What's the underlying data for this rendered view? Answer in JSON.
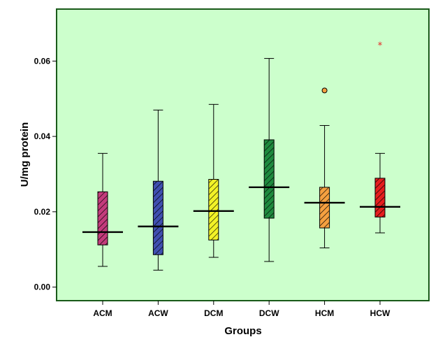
{
  "chart_data": {
    "type": "box",
    "xlabel": "Groups",
    "ylabel": "U/mg protein",
    "ylim": [
      -0.0036,
      0.0738
    ],
    "yticks": [
      0.0,
      0.02,
      0.04,
      0.06
    ],
    "ytick_labels": [
      "0.00",
      "0.02",
      "0.04",
      "0.06"
    ],
    "grid": false,
    "plot_background": "#ccffcc",
    "frame_color": "#1a5a1a",
    "categories": [
      "ACM",
      "ACW",
      "DCM",
      "DCW",
      "HCM",
      "HCW"
    ],
    "boxes": [
      {
        "category": "ACM",
        "min": 0.0055,
        "q1": 0.0112,
        "median": 0.0146,
        "q3": 0.0253,
        "max": 0.0355,
        "color": "#c43c7c",
        "outliers": []
      },
      {
        "category": "ACW",
        "min": 0.0045,
        "q1": 0.0086,
        "median": 0.0161,
        "q3": 0.0281,
        "max": 0.047,
        "color": "#3f4fb0",
        "outliers": []
      },
      {
        "category": "DCM",
        "min": 0.0079,
        "q1": 0.0125,
        "median": 0.0202,
        "q3": 0.0286,
        "max": 0.0485,
        "color": "#f2f227",
        "outliers": []
      },
      {
        "category": "DCW",
        "min": 0.0068,
        "q1": 0.0183,
        "median": 0.0265,
        "q3": 0.0391,
        "max": 0.0607,
        "color": "#1e8a3e",
        "outliers": []
      },
      {
        "category": "HCM",
        "min": 0.0104,
        "q1": 0.0157,
        "median": 0.0224,
        "q3": 0.0265,
        "max": 0.0429,
        "color": "#f5a040",
        "outliers": [
          {
            "value": 0.0522,
            "marker": "circle"
          }
        ]
      },
      {
        "category": "HCW",
        "min": 0.0144,
        "q1": 0.0186,
        "median": 0.0213,
        "q3": 0.0289,
        "max": 0.0355,
        "color": "#e61e1e",
        "outliers": [
          {
            "value": 0.0642,
            "marker": "star"
          }
        ]
      }
    ]
  }
}
